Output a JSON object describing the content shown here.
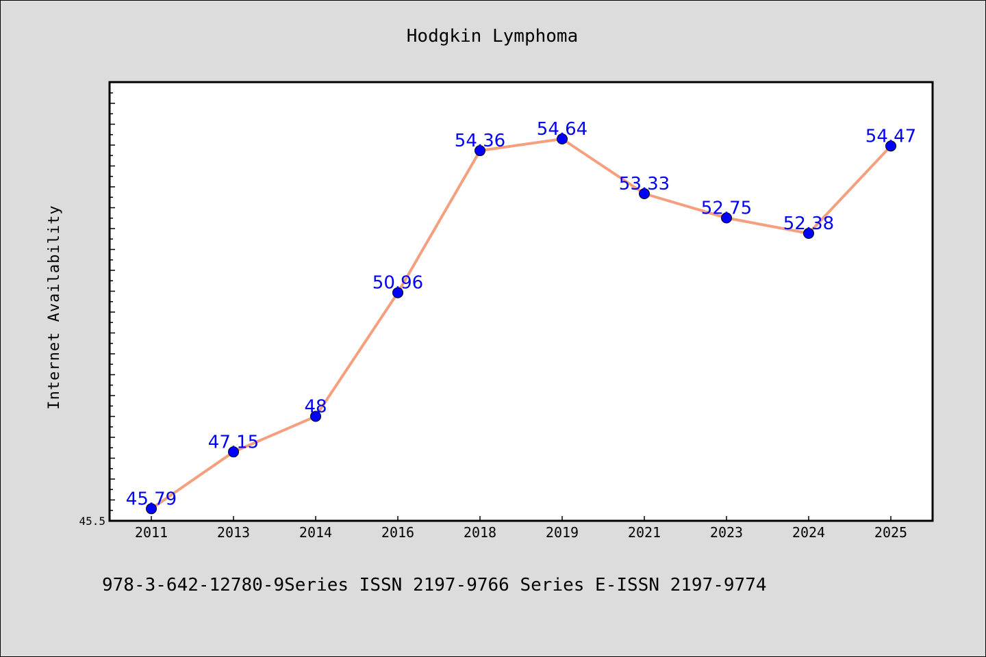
{
  "chart_data": {
    "type": "line",
    "title": "Hodgkin Lymphoma",
    "ylabel": "Internet Availability",
    "xlabel": "",
    "categories": [
      "2011",
      "2013",
      "2014",
      "2016",
      "2018",
      "2019",
      "2021",
      "2023",
      "2024",
      "2025"
    ],
    "values": [
      45.79,
      47.15,
      48,
      50.96,
      54.36,
      54.64,
      53.33,
      52.75,
      52.38,
      54.47
    ],
    "value_labels": [
      "45.79",
      "47.15",
      "48",
      "50.96",
      "54.36",
      "54.64",
      "53.33",
      "52.75",
      "52.38",
      "54.47"
    ],
    "ylim": [
      45.5,
      56.0
    ],
    "y_tick_labels": [
      "45.5"
    ],
    "grid": false,
    "line_color": "#f4a07f",
    "marker_color": "#0000ff",
    "label_color": "#0000ff",
    "plot_background": "#ffffff",
    "figure_background": "#dcdcdc"
  },
  "footer": {
    "text": "978-3-642-12780-9Series ISSN 2197-9766 Series E-ISSN 2197-9774"
  }
}
